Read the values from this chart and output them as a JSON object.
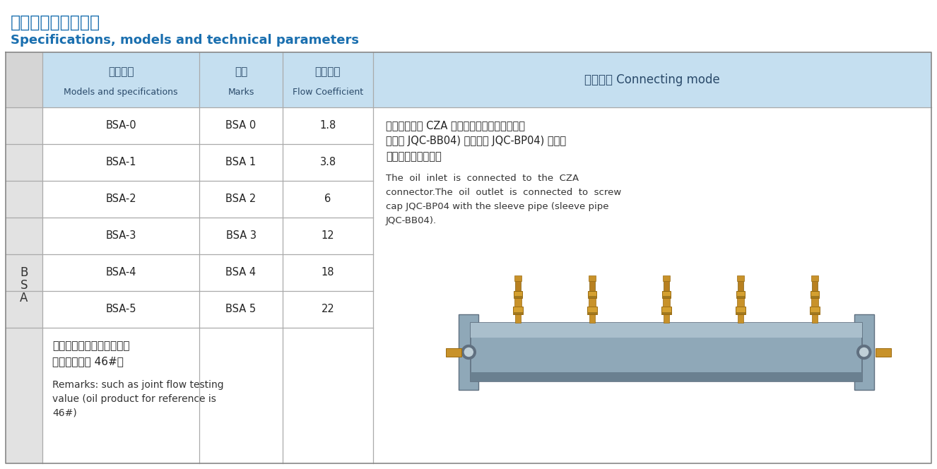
{
  "title_cn": "规格型号及技术参数",
  "title_en": "Specifications, models and technical parameters",
  "title_color": "#1a6faf",
  "header_bg": "#c5dff0",
  "header_text_color": "#2a4a6a",
  "border_color": "#999999",
  "col_headers": [
    [
      "型号规格",
      "Models and specifications"
    ],
    [
      "标记",
      "Marks"
    ],
    [
      "流量系数",
      "Flow Coefficient"
    ],
    [
      "联接方式 Connecting mode"
    ]
  ],
  "rows": [
    [
      "BSA-0",
      "BSA 0",
      "1.8"
    ],
    [
      "BSA-1",
      "BSA 1",
      "3.8"
    ],
    [
      "BSA-2",
      "BSA 2",
      "6"
    ],
    [
      "BSA-3",
      "BSA 3",
      "12"
    ],
    [
      "BSA-4",
      "BSA 4",
      "18"
    ],
    [
      "BSA-5",
      "BSA 5",
      "22"
    ]
  ],
  "row_label_lines": [
    "B",
    "S",
    "A"
  ],
  "connecting_mode_cn": [
    "进油口方向与 CZA 连接体连接。出油口方向与",
    "（套管 JQC-BB04) 和（螺帽 JQC-BP04) 连接。",
    "（常用于支路前端）"
  ],
  "connecting_mode_en": [
    "The  oil  inlet  is  connected  to  the  CZA",
    "connector.The  oil  outlet  is  connected  to  screw",
    "cap JQC-BP04 with the sleeve pipe (sleeve pipe",
    "JQC-BB04)."
  ],
  "remarks_cn": [
    "备注：比例接头流量测试值",
    "（参考油品为 46#）"
  ],
  "remarks_en": [
    "Remarks: such as joint flow testing",
    "value (oil product for reference is",
    "46#)"
  ]
}
